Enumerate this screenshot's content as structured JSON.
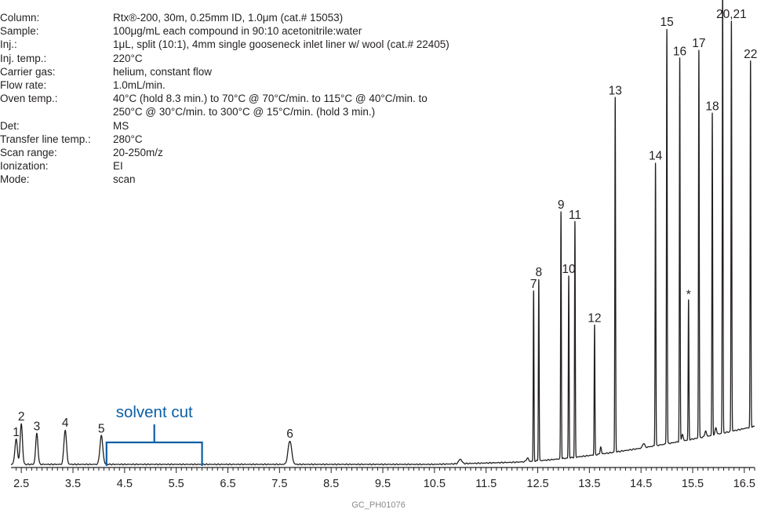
{
  "conditions": [
    {
      "label": "Column:",
      "value": "Rtx®-200, 30m, 0.25mm ID, 1.0μm (cat.# 15053)"
    },
    {
      "label": "Sample:",
      "value": "100μg/mL each compound in 90:10 acetonitrile:water"
    },
    {
      "label": "Inj.:",
      "value": "1μL, split (10:1), 4mm single gooseneck inlet liner w/ wool (cat.# 22405)"
    },
    {
      "label": "Inj. temp.:",
      "value": "220°C"
    },
    {
      "label": "Carrier gas:",
      "value": "helium, constant flow"
    },
    {
      "label": "Flow rate:",
      "value": "1.0mL/min."
    },
    {
      "label": "Oven temp.:",
      "value": "40°C (hold 8.3 min.) to 70°C @ 70°C/min. to 115°C @ 40°C/min. to\n250°C @ 30°C/min. to 300°C @ 15°C/min. (hold 3 min.)"
    },
    {
      "label": "Det:",
      "value": "MS"
    },
    {
      "label": "Transfer line temp.:",
      "value": "280°C"
    },
    {
      "label": "Scan range:",
      "value": "20-250m/z"
    },
    {
      "label": "Ionization:",
      "value": "EI"
    },
    {
      "label": "Mode:",
      "value": "scan"
    }
  ],
  "chart_code": "GC_PH01076",
  "colors": {
    "trace": "#231f20",
    "solvent_cut": "#0b5fa5",
    "code_text": "#8a8a8a"
  },
  "chart_data": {
    "type": "line",
    "xlim": [
      2.3,
      16.7
    ],
    "ylim": [
      0,
      100
    ],
    "x_ticks": [
      "2.5",
      "3.5",
      "4.5",
      "5.5",
      "6.5",
      "7.5",
      "8.5",
      "9.5",
      "10.5",
      "11.5",
      "12.5",
      "13.5",
      "14.5",
      "15.5",
      "16.5"
    ],
    "annotations": [
      {
        "text": "solvent cut",
        "x_start": 4.15,
        "x_end": 6.0
      }
    ],
    "peaks": [
      {
        "label": "1",
        "x": 2.4,
        "height": 5.5,
        "width": 0.025
      },
      {
        "label": "2",
        "x": 2.5,
        "height": 9.0,
        "width": 0.022
      },
      {
        "label": "3",
        "x": 2.8,
        "height": 6.8,
        "width": 0.022
      },
      {
        "label": "4",
        "x": 3.35,
        "height": 7.6,
        "width": 0.025
      },
      {
        "label": "5",
        "x": 4.05,
        "height": 6.3,
        "width": 0.028
      },
      {
        "label": "6",
        "x": 7.7,
        "height": 5.2,
        "width": 0.035
      },
      {
        "label": "7",
        "x": 12.42,
        "height": 37.5
      },
      {
        "label": "8",
        "x": 12.52,
        "height": 40.0
      },
      {
        "label": "9",
        "x": 12.95,
        "height": 54.5
      },
      {
        "label": "10",
        "x": 13.1,
        "height": 40.1
      },
      {
        "label": "11",
        "x": 13.22,
        "height": 51.9
      },
      {
        "label": "12",
        "x": 13.6,
        "height": 28.6
      },
      {
        "label": "13",
        "x": 14.0,
        "height": 78.2
      },
      {
        "label": "14",
        "x": 14.78,
        "height": 62.4
      },
      {
        "label": "15",
        "x": 15.0,
        "height": 91.5
      },
      {
        "label": "16",
        "x": 15.25,
        "height": 84.5
      },
      {
        "label": "*",
        "x": 15.42,
        "height": 30.8
      },
      {
        "label": "17",
        "x": 15.62,
        "height": 85.5
      },
      {
        "label": "18",
        "x": 15.88,
        "height": 71.0
      },
      {
        "label": "19",
        "x": 16.08,
        "height": 99.0
      },
      {
        "label": "20,21",
        "x": 16.25,
        "height": 90.5
      },
      {
        "label": "22",
        "x": 16.62,
        "height": 80.7
      }
    ]
  }
}
